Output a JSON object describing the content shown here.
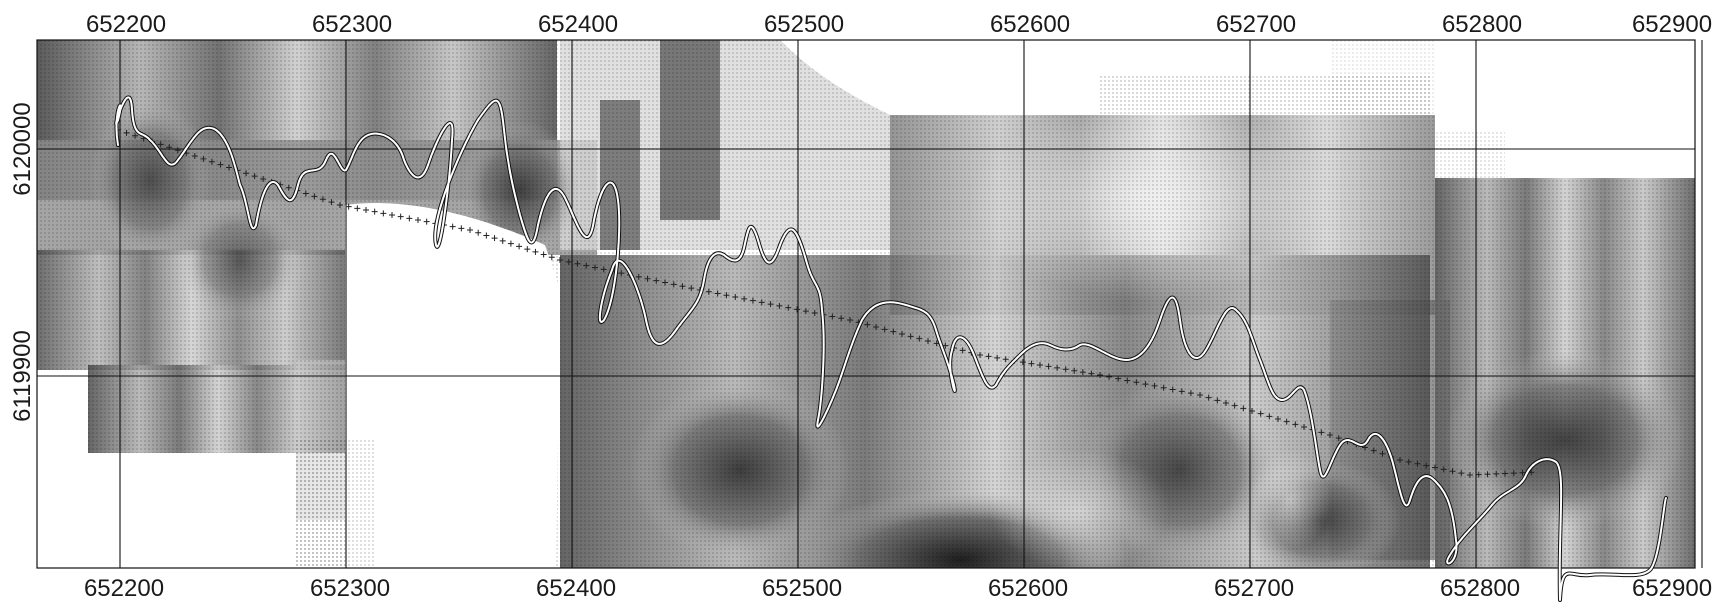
{
  "map": {
    "top_ticks": [
      "652200",
      "652300",
      "652400",
      "652500",
      "652600",
      "652700",
      "652800",
      "652900"
    ],
    "bottom_ticks": [
      "652200",
      "652300",
      "652400",
      "652500",
      "652600",
      "652700",
      "652800",
      "652900"
    ],
    "left_ticks": [
      "6120000",
      "6119900"
    ],
    "colors": {
      "background": "#ffffff",
      "grid": "#111111",
      "profile_line": "#ffffff",
      "profile_outline": "#111111",
      "station_markers": "#222222"
    },
    "icons": {
      "station_marker": "plus-sign"
    }
  }
}
